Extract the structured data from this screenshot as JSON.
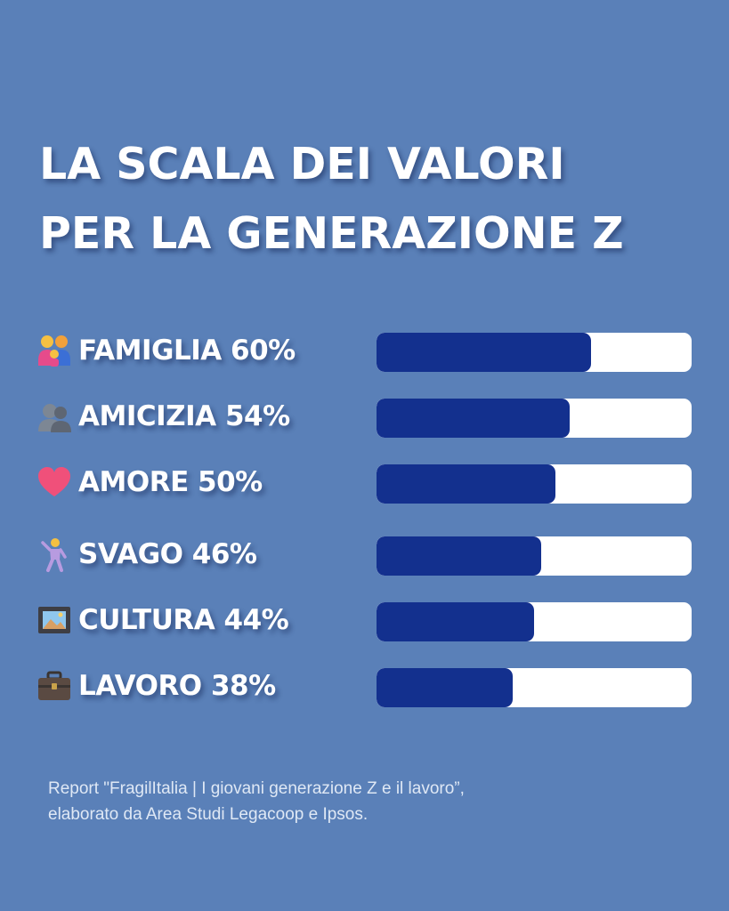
{
  "title": {
    "line1": "LA SCALA DEI VALORI",
    "line2": "PER LA GENERAZIONE Z"
  },
  "colors": {
    "background": "#5a80b8",
    "bar_fill": "#13308e",
    "bar_track": "#ffffff",
    "text": "#ffffff"
  },
  "chart_data": {
    "type": "bar",
    "orientation": "horizontal",
    "title": "LA SCALA DEI VALORI PER LA GENERAZIONE Z",
    "categories": [
      "FAMIGLIA",
      "AMICIZIA",
      "AMORE",
      "SVAGO",
      "CULTURA",
      "LAVORO"
    ],
    "values": [
      60,
      54,
      50,
      46,
      44,
      38
    ],
    "labels": [
      "FAMIGLIA 60%",
      "AMICIZIA 54%",
      "AMORE 50%",
      "SVAGO 46%",
      "CULTURA 44%",
      "LAVORO 38%"
    ],
    "icons": [
      "family-icon",
      "people-silhouette-icon",
      "heart-icon",
      "dancer-icon",
      "framed-picture-icon",
      "briefcase-icon"
    ],
    "xlim": [
      0,
      88
    ],
    "unit": "%"
  },
  "source": {
    "line1": "Report \"FragilItalia | I giovani generazione Z e il lavoro”,",
    "line2": "elaborato da Area Studi Legacoop e Ipsos."
  }
}
